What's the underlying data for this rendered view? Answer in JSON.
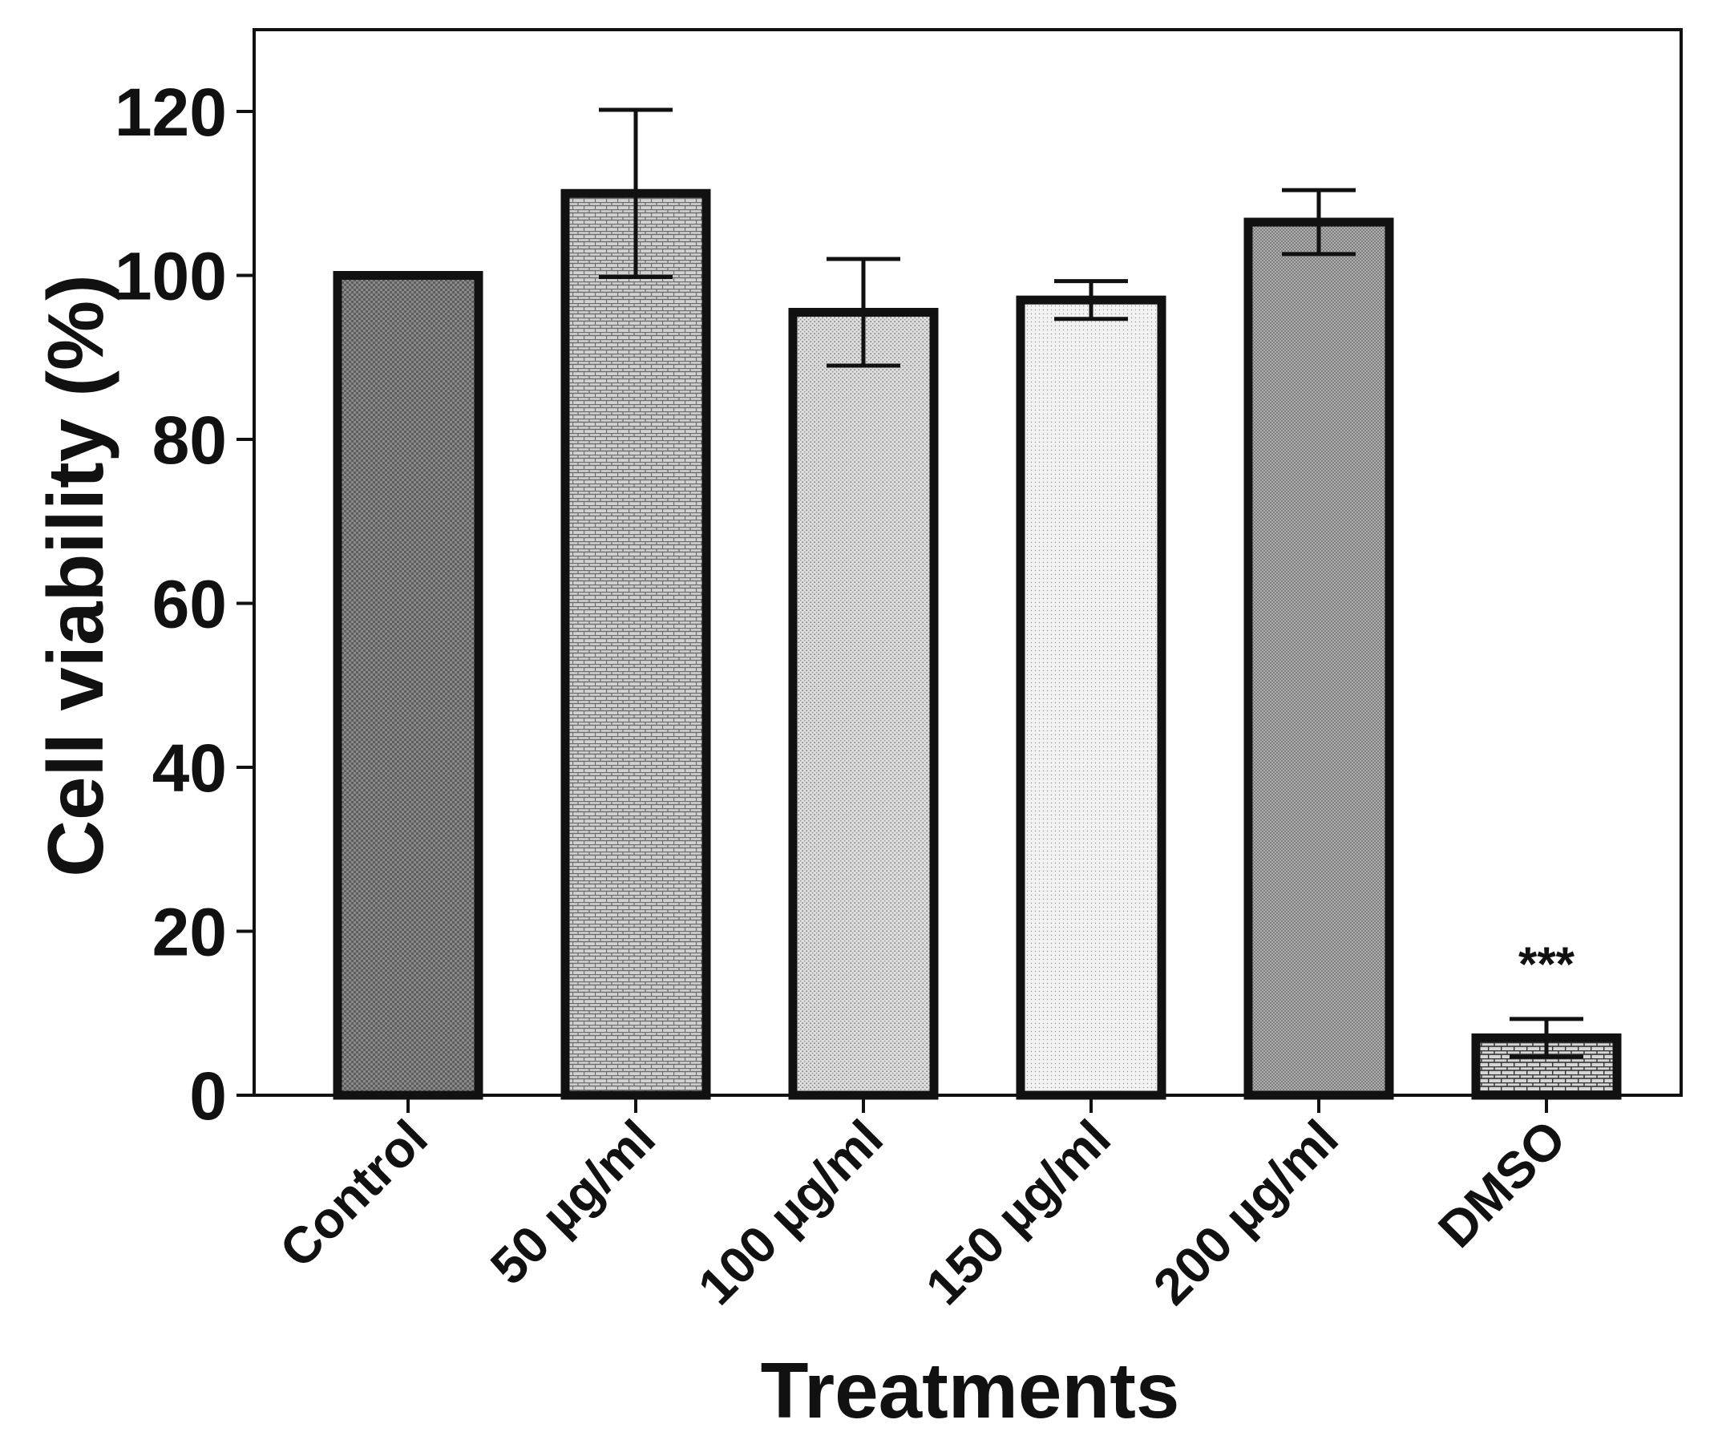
{
  "chart_data": {
    "type": "bar",
    "title": "",
    "xlabel": "Treatments",
    "ylabel": "Cell viability (%)",
    "ylim": [
      0,
      130
    ],
    "yticks": [
      0,
      20,
      40,
      60,
      80,
      100,
      120
    ],
    "categories": [
      "Control",
      "50 µg/ml",
      "100 µg/ml",
      "150 µg/ml",
      "200 µg/ml",
      "DMSO"
    ],
    "values": [
      100,
      110,
      95.5,
      97,
      106.5,
      7
    ],
    "error": [
      0,
      10.2,
      6.5,
      2.3,
      3.9,
      2.3
    ],
    "annotations": [
      {
        "category": "DMSO",
        "text": "***"
      }
    ],
    "grid": false
  },
  "colors": {
    "axis": "#111111",
    "bar_edge": "#111111",
    "fills": [
      "#6a6a6a",
      "#c9c9c9",
      "#d9d9d9",
      "#eeeeee",
      "#8f8f8f",
      "#b8b8b8"
    ]
  }
}
